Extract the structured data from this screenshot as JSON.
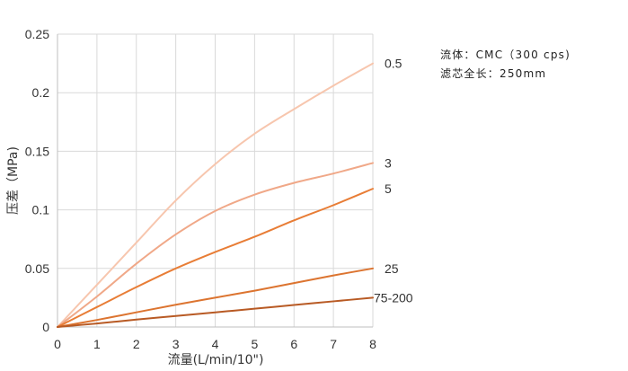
{
  "chart_data": {
    "type": "line",
    "xlabel": "流量(L/min/10\")",
    "ylabel": "压差（MPa)",
    "xlim": [
      0,
      8
    ],
    "ylim": [
      0,
      0.25
    ],
    "x_ticks": [
      "0",
      "1",
      "2",
      "3",
      "4",
      "5",
      "6",
      "7",
      "8"
    ],
    "y_ticks": [
      "0",
      "0.05",
      "0.1",
      "0.15",
      "0.2",
      "0.25"
    ],
    "grid": true,
    "series": [
      {
        "name": "0.5",
        "color": "#f7c6ae",
        "x": [
          0,
          1,
          2,
          3,
          4,
          5,
          6,
          7,
          8
        ],
        "y": [
          0,
          0.036,
          0.072,
          0.108,
          0.139,
          0.165,
          0.186,
          0.206,
          0.225
        ]
      },
      {
        "name": "3",
        "color": "#f0a888",
        "x": [
          0,
          1,
          2,
          3,
          4,
          5,
          6,
          7,
          8
        ],
        "y": [
          0,
          0.026,
          0.054,
          0.079,
          0.099,
          0.113,
          0.123,
          0.131,
          0.14
        ]
      },
      {
        "name": "5",
        "color": "#e87d36",
        "x": [
          0,
          1,
          2,
          3,
          4,
          5,
          6,
          7,
          8
        ],
        "y": [
          0,
          0.017,
          0.034,
          0.05,
          0.064,
          0.077,
          0.091,
          0.104,
          0.118
        ]
      },
      {
        "name": "25",
        "color": "#dc7430",
        "x": [
          0,
          1,
          2,
          3,
          4,
          5,
          6,
          7,
          8
        ],
        "y": [
          0,
          0.006,
          0.0125,
          0.019,
          0.025,
          0.031,
          0.0375,
          0.044,
          0.05
        ]
      },
      {
        "name": "75-200",
        "color": "#b85a24",
        "x": [
          0,
          1,
          2,
          3,
          4,
          5,
          6,
          7,
          8
        ],
        "y": [
          0,
          0.003,
          0.0063,
          0.0094,
          0.0125,
          0.0156,
          0.0188,
          0.0219,
          0.025
        ]
      }
    ]
  },
  "notes": {
    "fluid": "流体：CMC（300 cps)",
    "filter_length": "滤芯全长：250mm"
  }
}
